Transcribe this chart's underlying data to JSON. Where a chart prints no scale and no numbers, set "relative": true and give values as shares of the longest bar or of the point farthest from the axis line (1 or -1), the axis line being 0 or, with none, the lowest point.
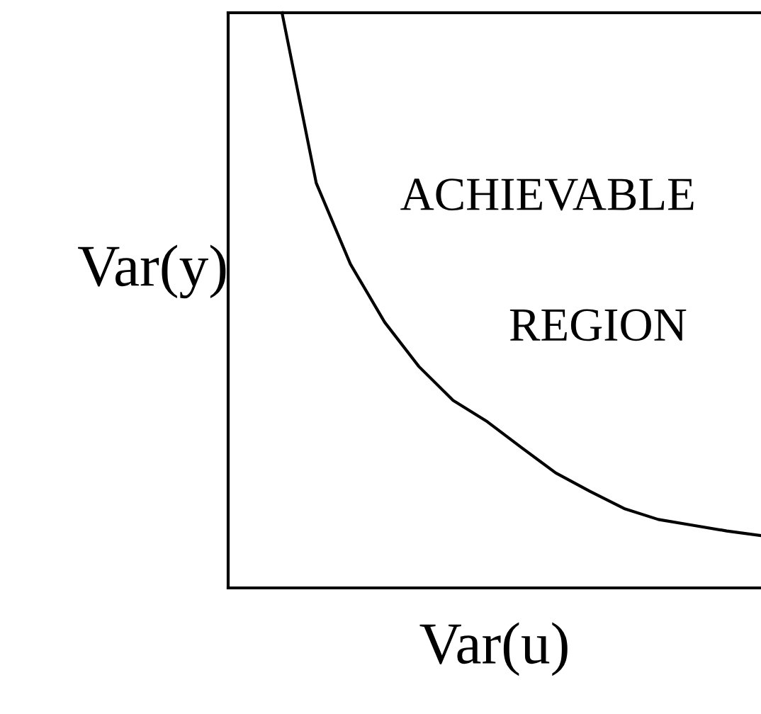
{
  "chart_data": {
    "type": "line",
    "relative": true,
    "xlabel": "Var(u)",
    "ylabel": "Var(y)",
    "annotations": [
      "ACHIEVABLE",
      "REGION"
    ],
    "categories": [
      null,
      null,
      null,
      null,
      null,
      null,
      null,
      null,
      null,
      null,
      null,
      null,
      null,
      null,
      null
    ],
    "series": [
      {
        "color": "#000000",
        "values": [
          1.0,
          0.704,
          0.563,
          0.462,
          0.385,
          0.326,
          0.289,
          0.244,
          0.2,
          0.168,
          0.138,
          0.119,
          0.109,
          0.099,
          0.091
        ]
      }
    ],
    "grid": false,
    "legend": false,
    "marker": "none",
    "line_style": "solid"
  }
}
